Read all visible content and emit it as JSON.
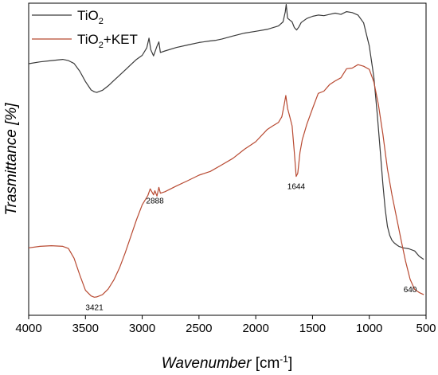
{
  "chart_data": {
    "type": "line",
    "title": "",
    "xlabel": {
      "main": "Wavenumber",
      "unit_prefix": "[cm",
      "unit_sup": "-1",
      "unit_suffix": "]"
    },
    "ylabel": "Trasmittance [%]",
    "xlim": [
      4000,
      500
    ],
    "x_reversed": true,
    "xticks": [
      4000,
      3500,
      3000,
      2500,
      2000,
      1500,
      1000,
      500
    ],
    "yticks": [],
    "grid": false,
    "legend_position": "top-left",
    "series": [
      {
        "name": "TiO2",
        "label_main": "TiO",
        "label_sub": "2",
        "label_suffix": "",
        "color": "#3a3a3a",
        "x": [
          4000,
          3900,
          3800,
          3700,
          3650,
          3600,
          3550,
          3500,
          3450,
          3421,
          3400,
          3350,
          3300,
          3250,
          3200,
          3150,
          3100,
          3050,
          3000,
          2960,
          2940,
          2925,
          2900,
          2870,
          2853,
          2840,
          2800,
          2700,
          2600,
          2500,
          2400,
          2350,
          2300,
          2200,
          2100,
          2000,
          1900,
          1800,
          1760,
          1740,
          1732,
          1720,
          1700,
          1680,
          1660,
          1640,
          1620,
          1600,
          1550,
          1500,
          1450,
          1400,
          1350,
          1300,
          1250,
          1200,
          1150,
          1100,
          1050,
          1000,
          960,
          930,
          900,
          880,
          860,
          840,
          820,
          800,
          780,
          760,
          740,
          700,
          650,
          600,
          560,
          520
        ],
        "y": [
          80.6,
          81.2,
          81.6,
          82.0,
          81.6,
          80.7,
          78.2,
          74.9,
          72.2,
          71.6,
          71.4,
          72.1,
          73.5,
          75.2,
          76.9,
          78.6,
          80.3,
          82.0,
          83.3,
          85.7,
          88.8,
          85.1,
          83.1,
          86.2,
          87.6,
          84.2,
          84.7,
          85.8,
          86.6,
          87.4,
          87.9,
          88.1,
          88.5,
          89.5,
          90.4,
          91.0,
          91.6,
          92.7,
          94.0,
          97.2,
          99.6,
          95.2,
          94.6,
          94.0,
          92.2,
          91.4,
          92.4,
          93.8,
          95.1,
          95.8,
          96.2,
          96.0,
          96.4,
          96.8,
          96.4,
          97.3,
          97.0,
          96.2,
          93.7,
          86.3,
          76.4,
          64.5,
          51.0,
          42.0,
          34.0,
          28.5,
          25.6,
          24.0,
          23.2,
          22.6,
          22.1,
          21.6,
          21.3,
          20.6,
          18.9,
          17.9
        ]
      },
      {
        "name": "TiO2+KET",
        "label_main": "TiO",
        "label_sub": "2",
        "label_suffix": "+KET",
        "color": "#b84a32",
        "x": [
          4000,
          3900,
          3800,
          3700,
          3650,
          3600,
          3550,
          3500,
          3450,
          3421,
          3400,
          3350,
          3300,
          3250,
          3200,
          3150,
          3100,
          3050,
          3000,
          2950,
          2930,
          2900,
          2888,
          2870,
          2853,
          2840,
          2800,
          2700,
          2600,
          2500,
          2400,
          2300,
          2200,
          2100,
          2000,
          1900,
          1850,
          1800,
          1770,
          1750,
          1735,
          1720,
          1700,
          1680,
          1660,
          1644,
          1630,
          1610,
          1590,
          1550,
          1500,
          1450,
          1400,
          1350,
          1300,
          1250,
          1200,
          1150,
          1100,
          1050,
          1000,
          960,
          920,
          880,
          840,
          800,
          760,
          720,
          680,
          640,
          600,
          560,
          520
        ],
        "y": [
          21.6,
          22.1,
          22.3,
          22.1,
          21.4,
          18.3,
          12.9,
          8.0,
          6.2,
          5.8,
          5.9,
          6.6,
          8.4,
          11.3,
          15.2,
          20.0,
          25.3,
          30.6,
          35.4,
          38.4,
          40.5,
          38.6,
          39.9,
          38.2,
          41.0,
          39.1,
          39.6,
          41.4,
          43.1,
          44.9,
          46.1,
          48.2,
          50.3,
          53.2,
          55.6,
          59.5,
          60.7,
          61.8,
          63.6,
          67.4,
          70.4,
          66.3,
          63.6,
          60.7,
          52.2,
          44.5,
          45.5,
          52.2,
          56.3,
          61.2,
          66.2,
          71.1,
          71.8,
          73.9,
          75.1,
          76.1,
          79.0,
          79.2,
          80.3,
          79.8,
          78.8,
          74.8,
          67.6,
          58.0,
          46.9,
          38.6,
          31.4,
          24.2,
          17.3,
          11.5,
          8.3,
          7.3,
          6.6
        ]
      }
    ],
    "annotations": [
      {
        "text": "3421",
        "x": 3421,
        "y": 5.8
      },
      {
        "text": "2888",
        "x": 2888,
        "y": 39.9
      },
      {
        "text": "1644",
        "x": 1644,
        "y": 44.5
      },
      {
        "text": "640",
        "x": 640,
        "y": 11.5
      }
    ]
  }
}
